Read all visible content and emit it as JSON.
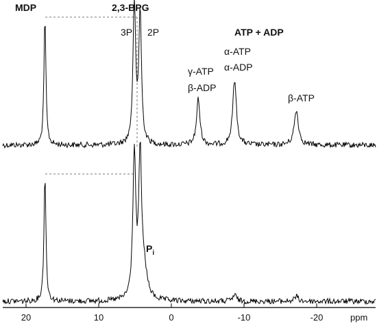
{
  "chart_data": {
    "type": "line",
    "xlabel": "ppm",
    "xlim": [
      22,
      -26
    ],
    "x_reversed": true,
    "ticks": [
      {
        "value": 20,
        "label": "20"
      },
      {
        "value": 10,
        "label": "10"
      },
      {
        "value": 0,
        "label": "0"
      },
      {
        "value": -10,
        "label": "-10"
      },
      {
        "value": -20,
        "label": "-20"
      }
    ],
    "annotations": {
      "mdp": "MDP",
      "bpg": "2,3-BPG",
      "p3": "3P",
      "p2": "2P",
      "atp_adp": "ATP + ADP",
      "gamma_atp": "γ-ATP",
      "beta_adp": "β-ADP",
      "alpha_atp": "α-ATP",
      "alpha_adp": "α-ADP",
      "beta_atp": "β-ATP",
      "pi_main": "P",
      "pi_sub": "i"
    },
    "series": [
      {
        "peaks": [
          {
            "x": 17.4,
            "height": 1.0,
            "width": 0.16
          },
          {
            "x": 5.1,
            "height": 1.09,
            "width": 0.22
          },
          {
            "x": 4.3,
            "height": 1.02,
            "width": 0.22
          },
          {
            "x": -3.7,
            "height": 0.36,
            "width": 0.28
          },
          {
            "x": -8.7,
            "height": 0.51,
            "width": 0.3
          },
          {
            "x": -17.2,
            "height": 0.27,
            "width": 0.35
          }
        ]
      },
      {
        "peaks": [
          {
            "x": 17.4,
            "height": 1.0,
            "width": 0.16
          },
          {
            "x": 5.1,
            "height": 1.13,
            "width": 0.24
          },
          {
            "x": 4.3,
            "height": 1.07,
            "width": 0.22
          },
          {
            "x": 3.8,
            "height": 0.25,
            "width": 0.5
          },
          {
            "x": -8.7,
            "height": 0.05,
            "width": 0.3
          },
          {
            "x": -17.2,
            "height": 0.04,
            "width": 0.3
          }
        ]
      }
    ]
  }
}
